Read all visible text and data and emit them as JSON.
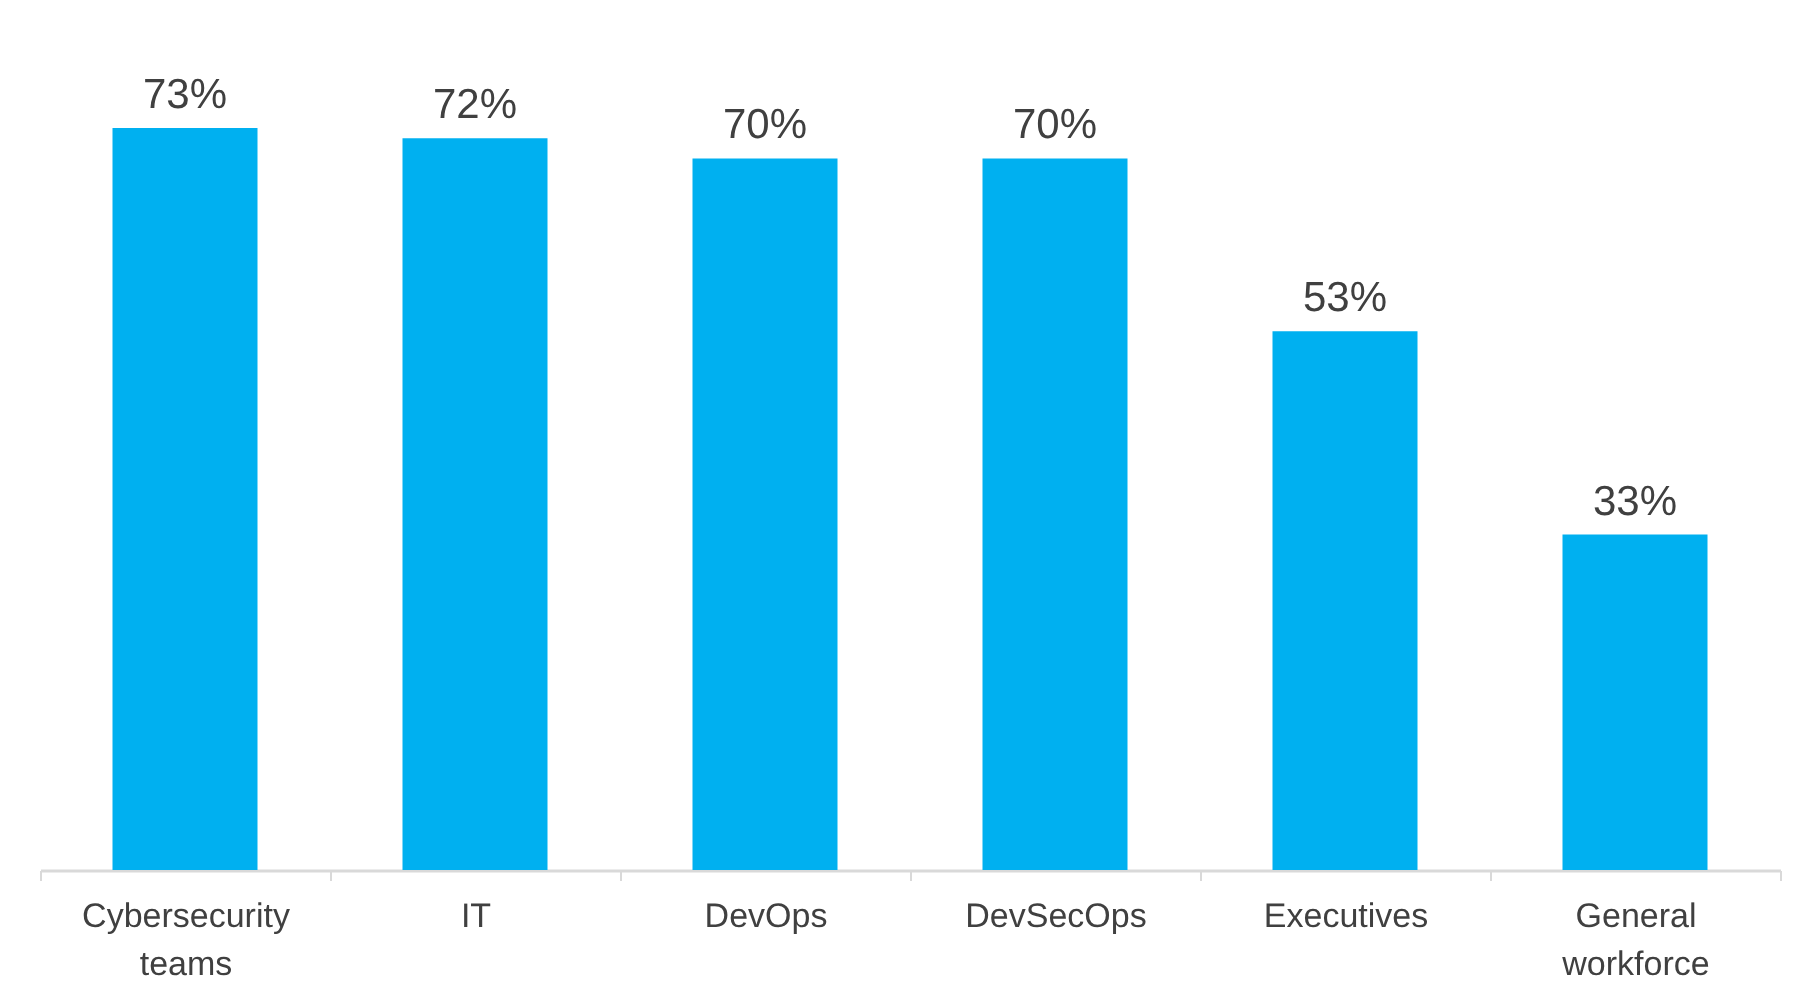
{
  "chart_data": {
    "type": "bar",
    "categories": [
      "Cybersecurity teams",
      "IT",
      "DevOps",
      "DevSecOps",
      "Executives",
      "General workforce"
    ],
    "values": [
      73,
      72,
      70,
      70,
      53,
      33
    ],
    "value_labels": [
      "73%",
      "72%",
      "70%",
      "70%",
      "53%",
      "33%"
    ],
    "color": "#00b0f0"
  }
}
